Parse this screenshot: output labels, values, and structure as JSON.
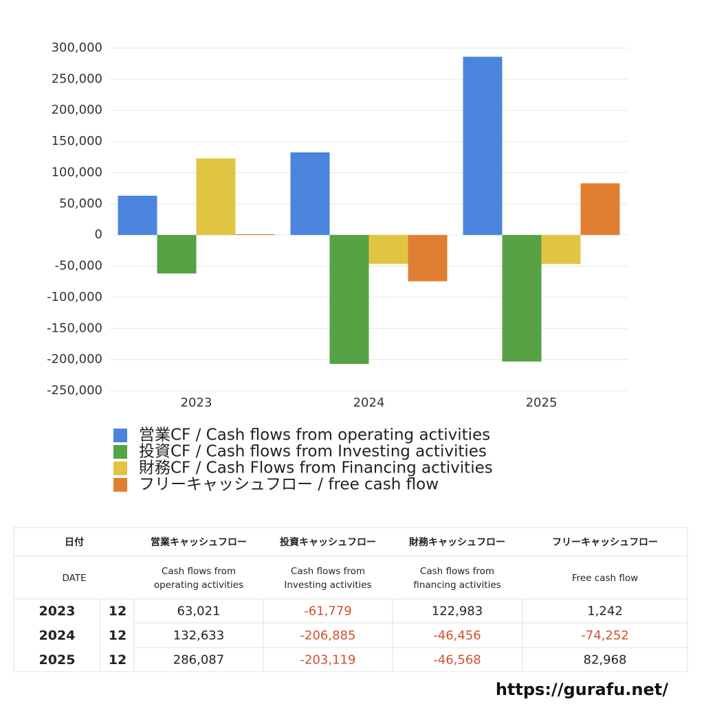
{
  "chart_data": {
    "type": "bar",
    "categories": [
      "2023",
      "2024",
      "2025"
    ],
    "series": [
      {
        "name": "営業CF / Cash flows from operating activities",
        "color": "#4a84dc",
        "values": [
          63021,
          132633,
          286087
        ]
      },
      {
        "name": "投資CF / Cash flows from Investing activities",
        "color": "#56a244",
        "values": [
          -61779,
          -206885,
          -203119
        ]
      },
      {
        "name": "財務CF / Cash Flows from Financing activities",
        "color": "#e2c443",
        "values": [
          122983,
          -46456,
          -46568
        ]
      },
      {
        "name": "フリーキャッシュフロー / free cash flow",
        "color": "#e07f32",
        "values": [
          1242,
          -74252,
          82968
        ]
      }
    ],
    "ylim": [
      -250000,
      300000
    ],
    "yticks": [
      {
        "value": -250000,
        "label": "-250,000"
      },
      {
        "value": -200000,
        "label": "-200,000"
      },
      {
        "value": -150000,
        "label": "-150,000"
      },
      {
        "value": -100000,
        "label": "-100,000"
      },
      {
        "value": -50000,
        "label": "-50,000"
      },
      0,
      {
        "value": 50000,
        "label": "50,000"
      },
      {
        "value": 100000,
        "label": "100,000"
      },
      {
        "value": 150000,
        "label": "150,000"
      },
      {
        "value": 200000,
        "label": "200,000"
      },
      {
        "value": 250000,
        "label": "250,000"
      },
      {
        "value": 300000,
        "label": "300,000"
      }
    ],
    "grid": true
  },
  "table": {
    "header": [
      "日付",
      "営業キャッシュフロー",
      "投資キャッシュフロー",
      "財務キャッシュフロー",
      "フリーキャッシュフロー"
    ],
    "subheader": [
      [
        "DATE"
      ],
      [
        "Cash flows from",
        "operating activities"
      ],
      [
        "Cash flows from",
        "Investing activities"
      ],
      [
        "Cash flows from",
        "financing activities"
      ],
      [
        "Free cash flow"
      ]
    ],
    "rows": [
      [
        "2023",
        "12",
        "63,021",
        "-61,779",
        "122,983",
        "1,242"
      ],
      [
        "2024",
        "12",
        "132,633",
        "-206,885",
        "-46,456",
        "-74,252"
      ],
      [
        "2025",
        "12",
        "286,087",
        "-203,119",
        "-46,568",
        "82,968"
      ]
    ]
  },
  "footer": "https://gurafu.net/"
}
